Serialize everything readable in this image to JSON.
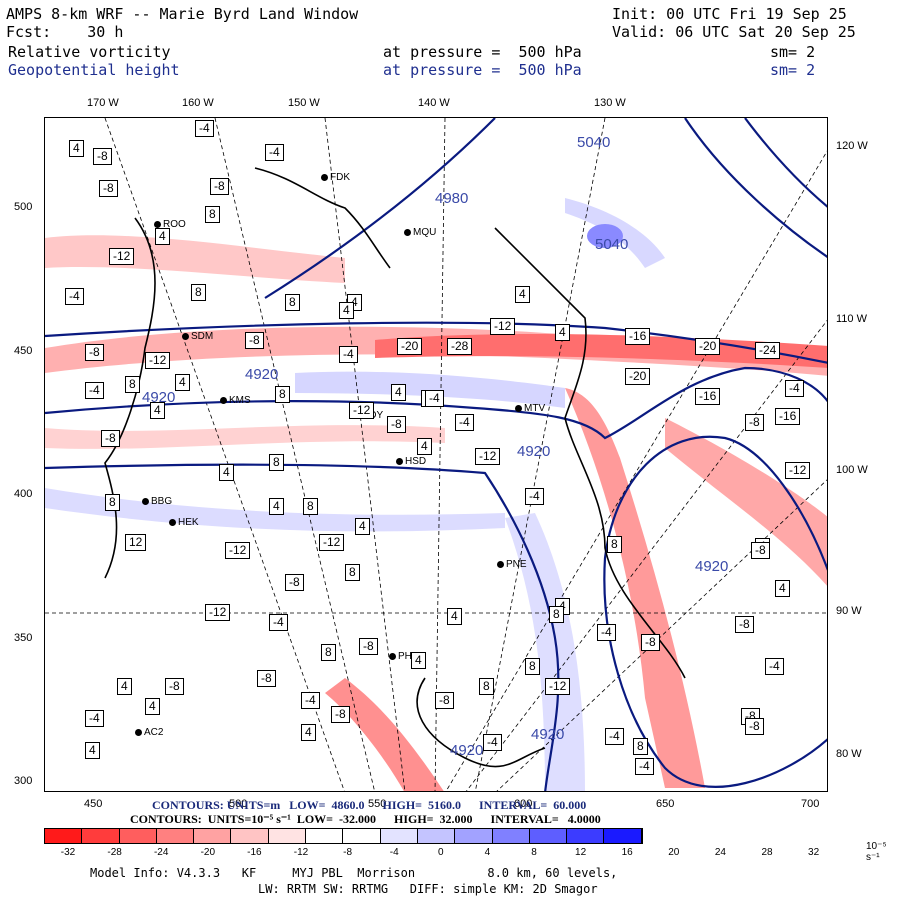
{
  "header": {
    "title": "AMPS 8-km WRF -- Marie Byrd Land Window",
    "init": "Init: 00 UTC Fri 19 Sep 25",
    "fcst": "Fcst:    30 h",
    "valid": "Valid: 06 UTC Sat 20 Sep 25",
    "field1": "Relative vorticity",
    "field1_level": "at pressure =  500 hPa",
    "field1_sm": "sm= 2",
    "field2": "Geopotential height",
    "field2_level": "at pressure =  500 hPa",
    "field2_sm": "sm= 2"
  },
  "axes": {
    "top_ticks": [
      "170 W",
      "160 W",
      "150 W",
      "140 W",
      "130 W"
    ],
    "right_ticks": [
      "120 W",
      "110 W",
      "100 W",
      "90 W",
      "80 W"
    ],
    "left_ticks": [
      "500",
      "450",
      "400",
      "350",
      "300"
    ],
    "bottom_ticks": [
      "450",
      "500",
      "550",
      "600",
      "650",
      "700"
    ]
  },
  "stations": [
    "ROO",
    "FDK",
    "MQU",
    "SDM",
    "KMS",
    "NDY",
    "MTV",
    "HSD",
    "BBG",
    "HEK",
    "PNE",
    "PHS",
    "AC2"
  ],
  "height_labels": [
    "5040",
    "4980",
    "5040",
    "4920",
    "4920",
    "4920",
    "4920",
    "4920",
    "4920"
  ],
  "vorticity_labels": [
    "-4",
    "-8",
    "4",
    "-8",
    "-4",
    "8",
    "-8",
    "4",
    "-12",
    "4",
    "8",
    "-4",
    "8",
    "-8",
    "4",
    "-8",
    "-12",
    "-4",
    "8",
    "4",
    "8",
    "4",
    "-20",
    "-28",
    "-12",
    "4",
    "-16",
    "-20",
    "-24",
    "-4",
    "-4",
    "-12",
    "-20",
    "4",
    "4",
    "-16",
    "-8",
    "-8",
    "4",
    "-16",
    "4",
    "4",
    "8",
    "-8",
    "-4",
    "-4",
    "4",
    "-12",
    "8",
    "4",
    "8",
    "-4",
    "8",
    "12",
    "-12",
    "-8",
    "-4",
    "8",
    "-8",
    "-8",
    "-12",
    "4",
    "4",
    "8",
    "4",
    "-8",
    "-4",
    "8",
    "-8",
    "-12",
    "-4",
    "8",
    "-4",
    "-8",
    "4",
    "4",
    "-8",
    "8",
    "-4",
    "-12",
    "-4",
    "8",
    "8",
    "-4",
    "-8",
    "-12",
    "4",
    "4",
    "-8",
    "-4",
    "-8",
    "4",
    "8",
    "4",
    "-8",
    "-12",
    "8"
  ],
  "contour_info": {
    "line1": "CONTOURS: UNITS=m   LOW=  4860.0      HIGH=  5160.0      INTERVAL=  60.000",
    "line2": "CONTOURS:  UNITS=10⁻⁵ s⁻¹  LOW=  -32.000      HIGH=  32.000      INTERVAL=   4.0000"
  },
  "colorbar": {
    "colors": [
      "#ff1a1a",
      "#ff3c3c",
      "#ff5e5e",
      "#ff8080",
      "#ffa2a2",
      "#ffc4c4",
      "#ffe3e3",
      "#ffffff",
      "#ffffff",
      "#e3e3ff",
      "#c4c4ff",
      "#a2a2ff",
      "#8080ff",
      "#5e5eff",
      "#3c3cff",
      "#1a1aff"
    ],
    "ticks": [
      "-32",
      "-28",
      "-24",
      "-20",
      "-16",
      "-12",
      "-8",
      "-4",
      "0",
      "4",
      "8",
      "12",
      "16",
      "20",
      "24",
      "28",
      "32"
    ],
    "unit": "10⁻⁵ s⁻¹"
  },
  "footer": {
    "line1": "Model Info: V4.3.3   KF     MYJ PBL  Morrison          8.0 km, 60 levels,",
    "line2": "LW: RRTM SW: RRTMG   DIFF: simple KM: 2D Smagor"
  }
}
